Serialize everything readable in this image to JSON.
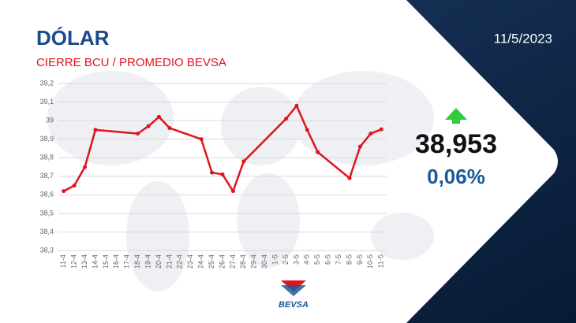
{
  "chart_data": {
    "type": "line",
    "title": "DÓLAR",
    "subtitle": "CIERRE BCU / PROMEDIO BEVSA",
    "date": "11/5/2023",
    "current_value": "38,953",
    "change": "0,06%",
    "logo": "BEVSA",
    "categories": [
      "11-4",
      "12-4",
      "13-4",
      "14-4",
      "15-4",
      "16-4",
      "17-4",
      "18-4",
      "19-4",
      "20-4",
      "21-4",
      "22-4",
      "23-4",
      "24-4",
      "25-4",
      "26-4",
      "27-4",
      "28-4",
      "29-4",
      "30-4",
      "1-5",
      "2-5",
      "3-5",
      "4-5",
      "5-5",
      "6-5",
      "7-5",
      "8-5",
      "9-5",
      "10-5",
      "11-5"
    ],
    "series": [
      {
        "color": "#e0141e",
        "x": [
          "11-4",
          "12-4",
          "13-4",
          "14-4",
          "18-4",
          "19-4",
          "20-4",
          "21-4",
          "24-4",
          "25-4",
          "26-4",
          "27-4",
          "28-4",
          "2-5",
          "3-5",
          "4-5",
          "5-5",
          "8-5",
          "9-5",
          "10-5",
          "11-5"
        ],
        "values": [
          38.62,
          38.65,
          38.75,
          38.95,
          38.93,
          38.97,
          39.02,
          38.96,
          38.9,
          38.72,
          38.71,
          38.62,
          38.78,
          39.01,
          39.08,
          38.95,
          38.83,
          38.69,
          38.86,
          38.93,
          38.953
        ]
      }
    ],
    "ylim": [
      38.3,
      39.2
    ],
    "yticks": [
      {
        "value": 38.3,
        "label": "38,3"
      },
      {
        "value": 38.4,
        "label": "38,4"
      },
      {
        "value": 38.5,
        "label": "38,5"
      },
      {
        "value": 38.6,
        "label": "38,6"
      },
      {
        "value": 38.7,
        "label": "38,7"
      },
      {
        "value": 38.8,
        "label": "38,8"
      },
      {
        "value": 38.9,
        "label": "38,9"
      },
      39,
      {
        "value": 39.1,
        "label": "39,1"
      },
      {
        "value": 39.2,
        "label": "39,2"
      }
    ],
    "grid": true
  }
}
